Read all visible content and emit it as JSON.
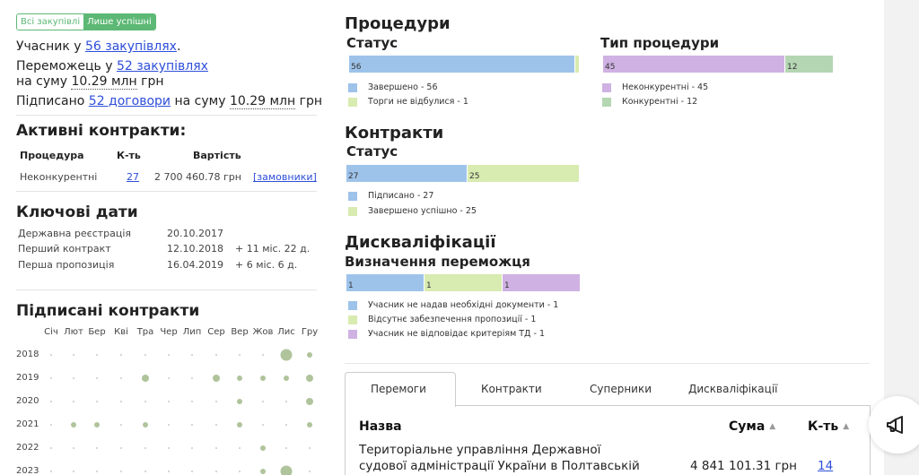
{
  "filter": {
    "all": "Всі закупівлі",
    "successful": "Лише успішні"
  },
  "summary": {
    "participant_prefix": "Учасник у",
    "participant_link": "56 закупівлях",
    "participant_suffix": ".",
    "winner_prefix": "Переможець у",
    "winner_link": "52 закупівлях",
    "winner_sum_prefix": "на суму",
    "winner_sum": "10.29 млн",
    "winner_currency": "грн",
    "signed_prefix": "Підписано",
    "signed_link": "52 договори",
    "signed_mid": "на суму",
    "signed_sum": "10.29 млн",
    "signed_currency": "грн"
  },
  "active_contracts": {
    "title": "Активні контракти:",
    "headers": {
      "procedure": "Процедура",
      "count": "К-ть",
      "value": "Вартість"
    },
    "row": {
      "procedure": "Неконкурентні",
      "count": "27",
      "value": "2 700 460.78 грн",
      "link": "[замовники]"
    }
  },
  "key_dates": {
    "title": "Ключові дати",
    "rows": [
      {
        "label": "Державна реєстрація",
        "date": "20.10.2017",
        "delta": ""
      },
      {
        "label": "Перший контракт",
        "date": "12.10.2018",
        "delta": "+ 11 міс. 22 д."
      },
      {
        "label": "Перша пропозиція",
        "date": "16.04.2019",
        "delta": "+ 6 міс. 6 д."
      }
    ]
  },
  "signed_calendar": {
    "title": "Підписані контракти",
    "months": [
      "Січ",
      "Лют",
      "Бер",
      "Кві",
      "Тра",
      "Чер",
      "Лип",
      "Сер",
      "Вер",
      "Жов",
      "Лис",
      "Гру"
    ],
    "years": [
      "2018",
      "2019",
      "2020",
      "2021",
      "2022",
      "2023"
    ],
    "dot_sizes": [
      [
        0,
        0,
        0,
        0,
        0,
        0,
        0,
        0,
        0,
        0,
        3,
        1
      ],
      [
        0,
        0,
        0,
        0,
        2,
        0,
        0,
        2,
        1,
        1,
        1,
        2
      ],
      [
        0,
        0,
        0,
        0,
        0,
        0,
        0,
        0,
        1,
        0,
        0,
        2
      ],
      [
        0,
        1,
        1,
        0,
        1,
        0,
        0,
        0,
        1,
        0,
        0,
        1
      ],
      [
        0,
        0,
        0,
        0,
        0,
        0,
        0,
        0,
        0,
        1,
        0,
        0
      ],
      [
        0,
        0,
        0,
        0,
        0,
        0,
        0,
        0,
        0,
        1,
        3,
        0
      ]
    ]
  },
  "procedures": {
    "title": "Процедури",
    "status_title": "Статус",
    "status_bars": [
      {
        "label": "56",
        "value": 56,
        "color": "#9ec3ea"
      },
      {
        "label": "",
        "value": 1,
        "color": "#d8ebb0"
      }
    ],
    "status_legend": [
      {
        "text": "Завершено - 56",
        "color": "#9ec3ea"
      },
      {
        "text": "Торги не відбулися - 1",
        "color": "#d8ebb0"
      }
    ],
    "type_title": "Тип процедури",
    "type_bars": [
      {
        "label": "45",
        "value": 45,
        "color": "#cfb2e3"
      },
      {
        "label": "12",
        "value": 12,
        "color": "#b5d6b3"
      }
    ],
    "type_legend": [
      {
        "text": "Неконкурентні - 45",
        "color": "#cfb2e3"
      },
      {
        "text": "Конкурентні - 12",
        "color": "#b5d6b3"
      }
    ]
  },
  "contracts": {
    "title": "Контракти",
    "status_title": "Статус",
    "bars": [
      {
        "label": "27",
        "value": 27,
        "color": "#9ec3ea"
      },
      {
        "label": "25",
        "value": 25,
        "color": "#d8ebb0"
      }
    ],
    "legend": [
      {
        "text": "Підписано - 27",
        "color": "#9ec3ea"
      },
      {
        "text": "Завершено успішно - 25",
        "color": "#d8ebb0"
      }
    ]
  },
  "disqualifications": {
    "title": "Дискваліфікації",
    "subtitle": "Визначення переможця",
    "bars": [
      {
        "label": "1",
        "value": 1,
        "color": "#9ec3ea"
      },
      {
        "label": "1",
        "value": 1,
        "color": "#d8ebb0"
      },
      {
        "label": "1",
        "value": 1,
        "color": "#cfb2e3"
      }
    ],
    "legend": [
      {
        "text": "Учасник не надав необхідні документи - 1",
        "color": "#9ec3ea"
      },
      {
        "text": "Відсутнє забезпечення пропозиції - 1",
        "color": "#d8ebb0"
      },
      {
        "text": "Учасник не відповідає критеріям ТД - 1",
        "color": "#cfb2e3"
      }
    ]
  },
  "tabs": [
    "Перемоги",
    "Контракти",
    "Суперники",
    "Дискваліфікації"
  ],
  "wins_table": {
    "headers": {
      "name": "Назва",
      "sum": "Сума",
      "count": "К-ть"
    },
    "row": {
      "name_line1": "Територіальне управління Державної",
      "name_line2": "судової адміністрації України в Полтавській",
      "sum": "4 841 101.31 грн",
      "count": "14"
    }
  }
}
